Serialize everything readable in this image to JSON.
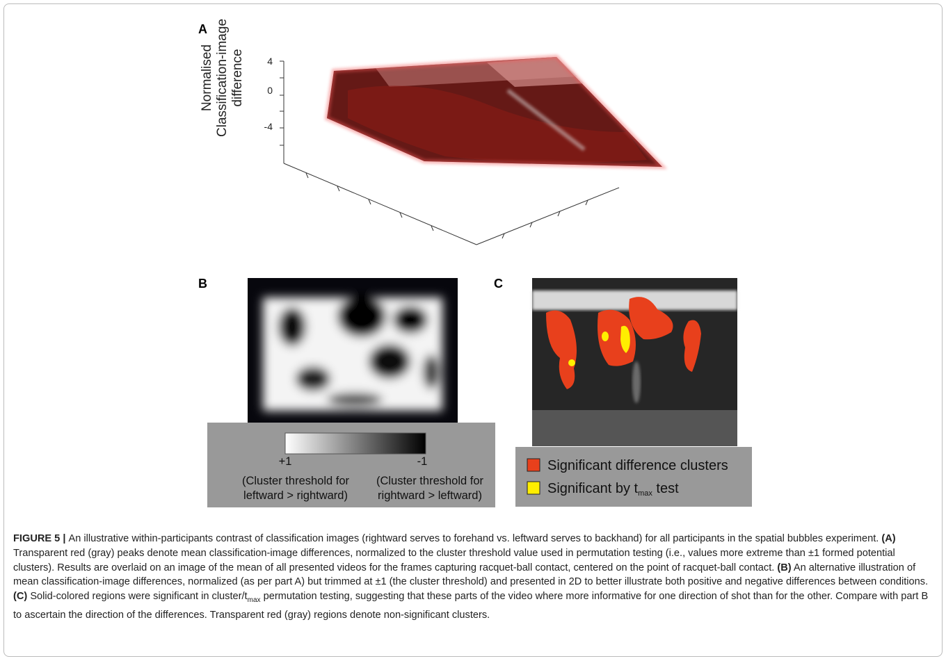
{
  "panel_a": {
    "label": "A",
    "axis_label": [
      "Normalised",
      "Classification-image",
      "difference"
    ],
    "ticks": [
      "4",
      "0",
      "-4"
    ]
  },
  "panel_b": {
    "label": "B",
    "colorbar": {
      "left": "+1",
      "right": "-1",
      "left_note": [
        "(Cluster threshold for",
        "leftward > rightward)"
      ],
      "right_note": [
        "(Cluster threshold for",
        "rightward > leftward)"
      ]
    }
  },
  "panel_c": {
    "label": "C",
    "legend": [
      {
        "name": "Significant difference clusters",
        "color": "#e8401c"
      },
      {
        "name": "Significant by t",
        "sub": "max",
        "tail": " test",
        "color": "#ffee00"
      }
    ]
  },
  "caption": {
    "parts": [
      {
        "text": "FIGURE 5 | ",
        "bold": true
      },
      {
        "text": "An illustrative within-participants contrast of classification images (rightward serves to forehand vs. leftward serves to backhand) for all participants in the spatial bubbles experiment. ",
        "bold": false
      },
      {
        "text": "(A)",
        "bold": true
      },
      {
        "text": " Transparent red (gray) peaks denote mean classification-image differences, normalized to the cluster threshold value used in permutation testing (i.e., values more extreme than ±1 formed potential clusters). Results are overlaid on an image of the mean of all presented videos for the frames capturing racquet-ball contact, centered on the point of racquet-ball contact. ",
        "bold": false
      },
      {
        "text": "(B)",
        "bold": true
      },
      {
        "text": " An alternative illustration of mean classification-image differences, normalized (as per part A) but trimmed at ±1 (the cluster threshold) and presented in 2D to better illustrate both positive and negative differences between conditions. ",
        "bold": false
      },
      {
        "text": "(C)",
        "bold": true
      },
      {
        "text": " Solid-colored regions were significant in cluster/t",
        "bold": false
      },
      {
        "text": "max",
        "bold": false,
        "sub": true
      },
      {
        "text": " permutation testing, suggesting that these parts of the video where more informative for one direction of shot than for the other. Compare with part B to ascertain the direction of the differences. Transparent red (gray) regions denote non-significant clusters.",
        "bold": false
      }
    ]
  }
}
